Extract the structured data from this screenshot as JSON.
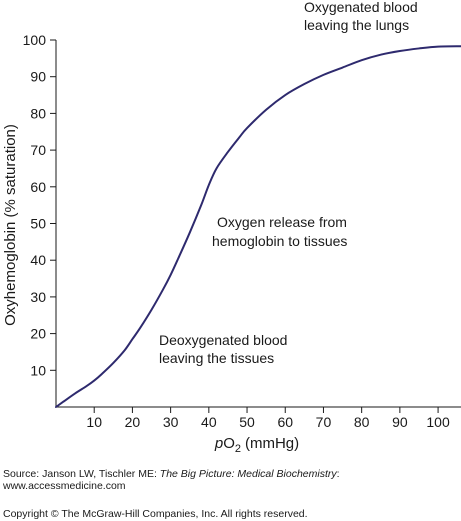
{
  "chart_data": {
    "type": "line",
    "xlabel_italic": "p",
    "xlabel_main": "O",
    "xlabel_sub": "2",
    "xlabel_unit": "(mmHg)",
    "ylabel": "Oxyhemoglobin (% saturation)",
    "xlim": [
      0,
      106
    ],
    "ylim": [
      0,
      100
    ],
    "x_ticks": [
      10,
      20,
      30,
      40,
      50,
      60,
      70,
      80,
      90,
      100
    ],
    "y_ticks": [
      10,
      20,
      30,
      40,
      50,
      60,
      70,
      80,
      90,
      100
    ],
    "grid": false,
    "line_color": "#2e2a6e",
    "series": [
      {
        "x": [
          0,
          2,
          5,
          8,
          10,
          12,
          15,
          18,
          20,
          22,
          25,
          28,
          30,
          32,
          35,
          38,
          40,
          42,
          45,
          48,
          50,
          55,
          60,
          65,
          70,
          75,
          80,
          85,
          90,
          95,
          100,
          106
        ],
        "y": [
          0,
          1.5,
          3.7,
          5.7,
          7.2,
          9,
          12,
          15.5,
          18.5,
          21.5,
          26.5,
          32,
          36,
          40.5,
          47.5,
          55,
          60.5,
          65,
          69.5,
          73.5,
          76,
          81,
          85,
          88,
          90.5,
          92.5,
          94.5,
          96,
          97,
          97.7,
          98.2,
          98.3
        ]
      }
    ],
    "annotations": {
      "lungs": [
        "Oxygenated blood",
        "leaving the lungs"
      ],
      "release": [
        "Oxygen release from",
        "hemoglobin to tissues"
      ],
      "tissues": [
        "Deoxygenated blood",
        "leaving the tissues"
      ]
    }
  },
  "footer": {
    "source_prefix": "Source: Janson LW, Tischler ME: ",
    "source_title": "The Big Picture: Medical Biochemistry",
    "source_suffix": ":",
    "source_url": "www.accessmedicine.com",
    "copyright": "Copyright © The McGraw-Hill Companies, Inc. All rights reserved."
  }
}
